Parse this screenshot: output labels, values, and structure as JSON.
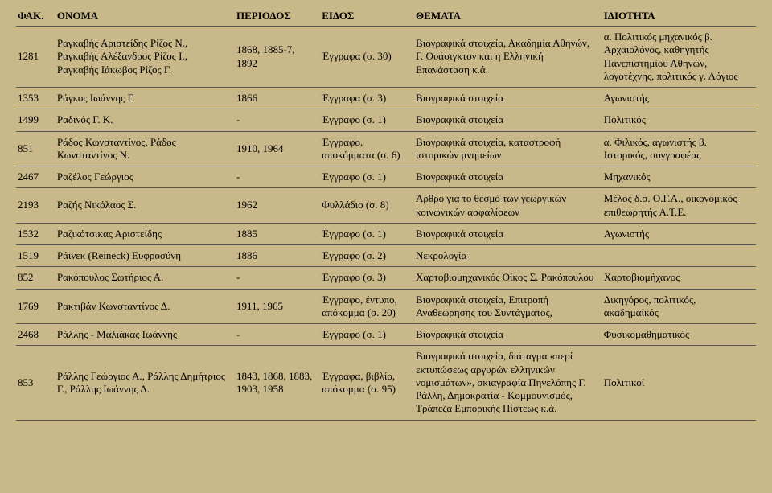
{
  "headers": {
    "fak": "ΦΑΚ.",
    "onoma": "ΟΝΟΜΑ",
    "periodos": "ΠΕΡΙΟΔΟΣ",
    "eidos": "ΕΙΔΟΣ",
    "themata": "ΘΕΜΑΤΑ",
    "idiotita": "ΙΔΙΟΤΗΤΑ"
  },
  "rows": [
    {
      "fak": "1281",
      "onoma": "Ραγκαβής Αριστείδης Ρίζος Ν., Ραγκαβής Αλέξανδρος Ρίζος Ι., Ραγκαβής Ιάκωβος Ρίζος Γ.",
      "periodos": "1868, 1885-7, 1892",
      "eidos": "Έγγραφα (σ. 30)",
      "themata": "Βιογραφικά στοιχεία, Ακαδημία Αθηνών, Γ. Ουάσιγκτον και η Ελληνική Επανάσταση κ.ά.",
      "idiotita": "α. Πολιτικός μηχανικός β. Αρχαιολόγος, καθηγητής Πανεπιστημίου Αθηνών, λογοτέχνης, πολιτικός γ. Λόγιος"
    },
    {
      "fak": "1353",
      "onoma": "Ράγκος Ιωάννης Γ.",
      "periodos": "1866",
      "eidos": "Έγγραφα (σ. 3)",
      "themata": "Βιογραφικά στοιχεία",
      "idiotita": "Αγωνιστής"
    },
    {
      "fak": "1499",
      "onoma": "Ραδινός Γ. Κ.",
      "periodos": "-",
      "eidos": "Έγγραφο (σ. 1)",
      "themata": "Βιογραφικά στοιχεία",
      "idiotita": "Πολιτικός"
    },
    {
      "fak": "851",
      "onoma": "Ράδος Κωνσταντίνος, Ράδος Κωνσταντίνος Ν.",
      "periodos": "1910, 1964",
      "eidos": "Έγγραφο, αποκόμματα (σ. 6)",
      "themata": "Βιογραφικά στοιχεία, καταστροφή ιστορικών μνημείων",
      "idiotita": "α. Φιλικός, αγωνιστής β. Ιστορικός, συγγραφέας"
    },
    {
      "fak": "2467",
      "onoma": "Ραζέλος Γεώργιος",
      "periodos": "-",
      "eidos": "Έγγραφο (σ. 1)",
      "themata": "Βιογραφικά στοιχεία",
      "idiotita": "Μηχανικός"
    },
    {
      "fak": "2193",
      "onoma": "Ραζής Νικόλαος Σ.",
      "periodos": "1962",
      "eidos": "Φυλλάδιο (σ. 8)",
      "themata": "Άρθρο για το θεσμό των γεωργικών κοινωνικών ασφαλίσεων",
      "idiotita": "Μέλος δ.σ. Ο.Γ.Α., οικονομικός επιθεωρητής Α.Τ.Ε."
    },
    {
      "fak": "1532",
      "onoma": "Ραζικότσικας Αριστείδης",
      "periodos": "1885",
      "eidos": "Έγγραφο (σ. 1)",
      "themata": "Βιογραφικά στοιχεία",
      "idiotita": "Αγωνιστής"
    },
    {
      "fak": "1519",
      "onoma": "Ράινεκ (Reineck) Ευφροσύνη",
      "periodos": "1886",
      "eidos": "Έγγραφο (σ. 2)",
      "themata": "Νεκρολογία",
      "idiotita": ""
    },
    {
      "fak": "852",
      "onoma": "Ρακόπουλος Σωτήριος Α.",
      "periodos": "-",
      "eidos": "Έγγραφο (σ. 3)",
      "themata": "Χαρτοβιομηχανικός Οίκος Σ. Ρακόπουλου",
      "idiotita": "Χαρτοβιομήχανος"
    },
    {
      "fak": "1769",
      "onoma": "Ρακτιβάν Κωνσταντίνος Δ.",
      "periodos": "1911, 1965",
      "eidos": "Έγγραφο, έντυπο, απόκομμα (σ. 20)",
      "themata": "Βιογραφικά στοιχεία, Επιτροπή Αναθεώρησης του Συντάγματος,",
      "idiotita": "Δικηγόρος, πολιτικός, ακαδημαϊκός"
    },
    {
      "fak": "2468",
      "onoma": "Ράλλης - Μαλιάκας Ιωάννης",
      "periodos": "-",
      "eidos": "Έγγραφο (σ. 1)",
      "themata": "Βιογραφικά στοιχεία",
      "idiotita": "Φυσικομαθηματικός"
    },
    {
      "fak": "853",
      "onoma": "Ράλλης Γεώργιος Α., Ράλλης Δημήτριος Γ., Ράλλης Ιωάννης Δ.",
      "periodos": "1843, 1868, 1883, 1903, 1958",
      "eidos": "Έγγραφα, βιβλίο, απόκομμα (σ. 95)",
      "themata": "Βιογραφικά στοιχεία, διάταγμα «περί εκτυπώσεως αργυρών ελληνικών νομισμάτων», σκιαγραφία Πηνελόπης Γ. Ράλλη, Δημοκρατία - Κομμουνισμός, Τράπεζα Εμπορικής Πίστεως κ.ά.",
      "idiotita": "Πολιτικοί"
    }
  ]
}
